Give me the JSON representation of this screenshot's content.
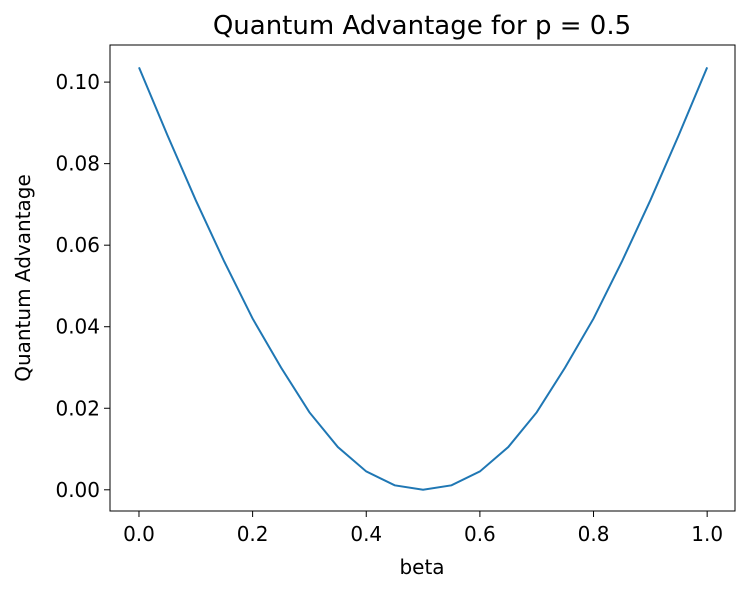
{
  "chart_data": {
    "type": "line",
    "title": "Quantum Advantage for p = 0.5",
    "x_label": "beta",
    "y_label": "Quantum Advantage",
    "x": [
      0,
      0.05,
      0.1,
      0.15,
      0.2,
      0.25,
      0.3,
      0.35,
      0.4,
      0.45,
      0.5,
      0.55,
      0.6,
      0.65,
      0.7,
      0.75,
      0.8,
      0.85,
      0.9,
      0.95,
      1
    ],
    "series": [
      {
        "name": "Quantum Advantage",
        "color": "#1f77b4",
        "values": [
          0.1036,
          0.087,
          0.071,
          0.056,
          0.042,
          0.03,
          0.019,
          0.0105,
          0.0045,
          0.0011,
          0,
          0.0011,
          0.0045,
          0.0105,
          0.019,
          0.03,
          0.042,
          0.056,
          0.071,
          0.087,
          0.1036
        ]
      }
    ],
    "xlim": [
      -0.051,
      1.049
    ],
    "ylim": [
      -0.0052,
      0.1091
    ],
    "xticks": [
      {
        "value": 0,
        "label": "0.0"
      },
      0.2,
      0.4,
      0.6,
      0.8,
      {
        "value": 1,
        "label": "1.0"
      }
    ],
    "yticks": [
      {
        "value": 0,
        "label": "0.00"
      },
      {
        "value": 0.02,
        "label": "0.02"
      },
      {
        "value": 0.04,
        "label": "0.04"
      },
      {
        "value": 0.06,
        "label": "0.06"
      },
      {
        "value": 0.08,
        "label": "0.08"
      },
      {
        "value": 0.1,
        "label": "0.10"
      }
    ],
    "grid": false
  }
}
